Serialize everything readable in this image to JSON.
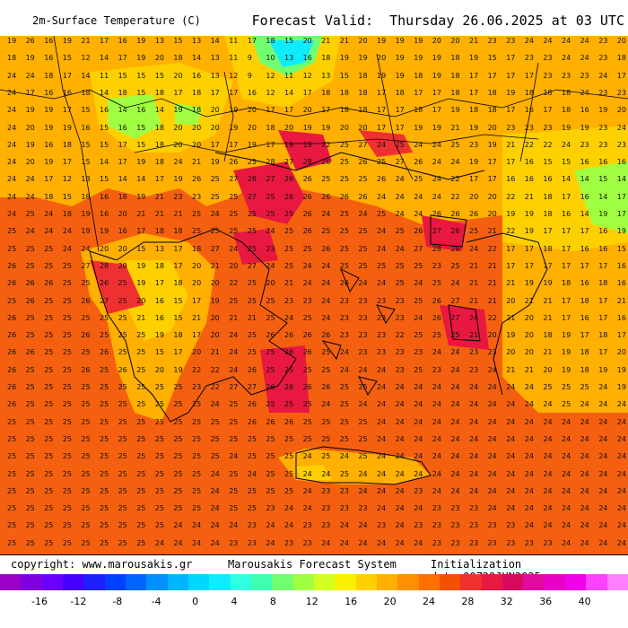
{
  "header": {
    "title": "2m-Surface Temperature (C)",
    "forecast_valid": "Forecast Valid:  Thursday 26.06.2025 at 03 UTC"
  },
  "footer": {
    "copyright": "copyright: www.marousakis.gr",
    "system": "Marousakis Forecast System",
    "init": "Initialization date:00Z22JUN2025"
  },
  "colorbar": {
    "ticks": [
      "-16",
      "-12",
      "-8",
      "-4",
      "0",
      "4",
      "8",
      "12",
      "16",
      "20",
      "24",
      "28",
      "32",
      "36",
      "40"
    ],
    "colors": [
      "#9a00c8",
      "#8000e0",
      "#6a00ff",
      "#4600ff",
      "#2020ff",
      "#0040ff",
      "#0064ff",
      "#0090ff",
      "#00b4ff",
      "#00d8ff",
      "#10ecff",
      "#30ffe0",
      "#40ffb0",
      "#70ff70",
      "#a0ff40",
      "#d0ff20",
      "#f8f000",
      "#ffd000",
      "#ffb000",
      "#ff9000",
      "#ff7000",
      "#f55000",
      "#ef3030",
      "#e81840",
      "#d80a60",
      "#e00aa0",
      "#e800c8",
      "#f000e8",
      "#ff40ff",
      "#ff80ff"
    ]
  },
  "grid_values": [
    [
      19,
      26,
      16,
      19,
      21,
      17,
      16,
      19,
      13,
      15,
      13,
      14,
      11,
      17,
      18,
      15,
      20,
      21,
      21,
      20,
      19,
      19,
      19,
      20,
      20,
      21,
      23,
      23,
      24,
      24,
      24,
      24,
      23,
      20
    ],
    [
      18,
      19,
      16,
      15,
      12,
      14,
      17,
      19,
      20,
      18,
      14,
      13,
      11,
      9,
      10,
      13,
      16,
      18,
      19,
      19,
      20,
      19,
      19,
      19,
      18,
      19,
      15,
      17,
      23,
      23,
      24,
      24,
      23,
      18
    ],
    [
      24,
      24,
      18,
      17,
      14,
      11,
      15,
      15,
      15,
      20,
      16,
      13,
      12,
      9,
      12,
      11,
      12,
      13,
      15,
      18,
      19,
      19,
      18,
      19,
      18,
      17,
      17,
      17,
      17,
      23,
      23,
      23,
      24,
      17
    ],
    [
      24,
      17,
      16,
      16,
      18,
      14,
      18,
      15,
      18,
      17,
      18,
      17,
      17,
      16,
      12,
      14,
      17,
      18,
      18,
      18,
      17,
      18,
      17,
      17,
      18,
      17,
      18,
      19,
      18,
      18,
      18,
      24,
      23,
      23
    ],
    [
      24,
      19,
      19,
      17,
      15,
      16,
      14,
      16,
      14,
      19,
      18,
      20,
      19,
      20,
      17,
      17,
      20,
      17,
      18,
      18,
      17,
      17,
      18,
      17,
      19,
      18,
      18,
      17,
      16,
      17,
      18,
      16,
      19,
      20
    ],
    [
      24,
      20,
      19,
      19,
      16,
      15,
      16,
      15,
      18,
      20,
      20,
      20,
      19,
      20,
      18,
      20,
      19,
      19,
      20,
      20,
      17,
      17,
      19,
      19,
      21,
      19,
      20,
      23,
      23,
      23,
      19,
      19,
      23,
      24
    ],
    [
      24,
      19,
      16,
      18,
      15,
      15,
      17,
      15,
      18,
      20,
      20,
      17,
      17,
      19,
      17,
      19,
      19,
      22,
      25,
      27,
      24,
      25,
      24,
      24,
      25,
      23,
      19,
      21,
      22,
      22,
      24,
      23,
      23,
      23
    ],
    [
      24,
      20,
      19,
      17,
      15,
      14,
      17,
      19,
      18,
      24,
      21,
      19,
      26,
      25,
      28,
      27,
      28,
      26,
      25,
      26,
      25,
      27,
      26,
      24,
      24,
      19,
      17,
      17,
      16,
      15,
      15,
      16,
      16,
      16
    ],
    [
      24,
      24,
      17,
      12,
      13,
      15,
      14,
      14,
      17,
      19,
      26,
      25,
      27,
      28,
      27,
      26,
      26,
      25,
      25,
      25,
      26,
      24,
      25,
      24,
      22,
      17,
      17,
      16,
      16,
      16,
      14,
      14,
      15,
      14
    ],
    [
      24,
      24,
      18,
      15,
      18,
      16,
      18,
      19,
      21,
      23,
      23,
      25,
      25,
      27,
      25,
      26,
      26,
      26,
      26,
      26,
      24,
      24,
      24,
      24,
      22,
      20,
      20,
      22,
      21,
      18,
      17,
      16,
      14,
      17
    ],
    [
      24,
      25,
      24,
      18,
      19,
      16,
      20,
      21,
      21,
      21,
      25,
      24,
      25,
      25,
      25,
      25,
      26,
      24,
      25,
      24,
      25,
      24,
      24,
      26,
      26,
      26,
      20,
      19,
      19,
      18,
      16,
      14,
      19,
      17
    ],
    [
      25,
      24,
      24,
      24,
      19,
      19,
      16,
      17,
      18,
      18,
      25,
      25,
      25,
      25,
      24,
      25,
      26,
      25,
      25,
      25,
      24,
      25,
      26,
      27,
      26,
      25,
      21,
      22,
      19,
      17,
      17,
      17,
      16,
      19
    ],
    [
      25,
      25,
      25,
      24,
      24,
      20,
      20,
      15,
      13,
      17,
      18,
      27,
      24,
      25,
      23,
      25,
      25,
      26,
      25,
      25,
      24,
      24,
      27,
      28,
      26,
      24,
      22,
      17,
      17,
      18,
      17,
      16,
      16,
      15
    ],
    [
      26,
      25,
      25,
      25,
      27,
      28,
      20,
      19,
      18,
      17,
      20,
      21,
      20,
      27,
      24,
      25,
      24,
      24,
      25,
      25,
      25,
      25,
      25,
      23,
      25,
      21,
      21,
      17,
      17,
      17,
      17,
      17,
      17,
      16
    ],
    [
      26,
      26,
      26,
      25,
      25,
      26,
      25,
      19,
      17,
      18,
      20,
      20,
      22,
      25,
      20,
      21,
      24,
      24,
      26,
      24,
      24,
      25,
      24,
      25,
      24,
      21,
      21,
      21,
      19,
      19,
      18,
      16,
      18,
      16
    ],
    [
      25,
      26,
      25,
      25,
      26,
      27,
      25,
      20,
      16,
      15,
      17,
      19,
      25,
      25,
      25,
      23,
      23,
      24,
      23,
      23,
      23,
      23,
      25,
      26,
      27,
      21,
      21,
      20,
      21,
      21,
      17,
      18,
      17,
      21
    ],
    [
      26,
      25,
      25,
      25,
      25,
      25,
      25,
      21,
      16,
      15,
      21,
      20,
      21,
      21,
      25,
      24,
      25,
      24,
      23,
      23,
      23,
      23,
      24,
      26,
      27,
      24,
      22,
      21,
      20,
      21,
      17,
      16,
      17,
      16
    ],
    [
      26,
      25,
      25,
      25,
      26,
      25,
      25,
      25,
      19,
      18,
      17,
      20,
      24,
      25,
      26,
      26,
      26,
      26,
      23,
      23,
      23,
      22,
      25,
      25,
      25,
      21,
      20,
      19,
      20,
      18,
      19,
      17,
      18,
      17
    ],
    [
      26,
      26,
      25,
      25,
      25,
      26,
      25,
      25,
      15,
      17,
      20,
      21,
      24,
      25,
      25,
      26,
      26,
      25,
      24,
      23,
      23,
      23,
      23,
      24,
      24,
      23,
      23,
      20,
      20,
      21,
      19,
      18,
      17,
      20
    ],
    [
      26,
      25,
      25,
      25,
      26,
      25,
      26,
      25,
      20,
      19,
      22,
      22,
      24,
      26,
      25,
      25,
      25,
      25,
      24,
      24,
      24,
      23,
      25,
      23,
      24,
      23,
      24,
      21,
      21,
      20,
      19,
      18,
      19,
      19
    ],
    [
      26,
      25,
      25,
      25,
      25,
      25,
      25,
      25,
      25,
      25,
      23,
      22,
      27,
      27,
      26,
      26,
      26,
      26,
      25,
      25,
      24,
      24,
      24,
      24,
      24,
      24,
      24,
      24,
      24,
      25,
      25,
      25,
      24,
      19
    ],
    [
      26,
      25,
      25,
      25,
      25,
      25,
      25,
      25,
      25,
      25,
      25,
      24,
      25,
      26,
      25,
      25,
      25,
      24,
      25,
      24,
      24,
      24,
      24,
      24,
      24,
      24,
      24,
      24,
      24,
      24,
      25,
      24,
      24,
      24
    ],
    [
      25,
      25,
      25,
      25,
      25,
      25,
      25,
      25,
      25,
      25,
      25,
      25,
      25,
      26,
      26,
      26,
      25,
      25,
      25,
      25,
      24,
      24,
      24,
      24,
      24,
      24,
      24,
      24,
      24,
      24,
      24,
      24,
      24,
      24
    ],
    [
      25,
      25,
      25,
      25,
      25,
      25,
      25,
      25,
      25,
      25,
      25,
      25,
      25,
      25,
      25,
      25,
      25,
      25,
      25,
      25,
      24,
      24,
      24,
      24,
      24,
      24,
      24,
      24,
      24,
      24,
      24,
      24,
      24,
      24
    ],
    [
      25,
      25,
      25,
      25,
      25,
      25,
      25,
      25,
      25,
      25,
      25,
      25,
      24,
      25,
      25,
      25,
      24,
      25,
      24,
      25,
      24,
      24,
      24,
      24,
      24,
      24,
      24,
      24,
      24,
      24,
      24,
      24,
      24,
      24
    ],
    [
      25,
      25,
      25,
      25,
      25,
      25,
      25,
      25,
      25,
      25,
      25,
      24,
      25,
      24,
      25,
      25,
      24,
      24,
      25,
      24,
      24,
      24,
      24,
      24,
      24,
      24,
      24,
      24,
      24,
      24,
      24,
      24,
      24,
      24
    ],
    [
      25,
      25,
      25,
      25,
      25,
      25,
      25,
      25,
      25,
      25,
      25,
      24,
      25,
      25,
      25,
      25,
      24,
      23,
      23,
      24,
      24,
      24,
      23,
      24,
      24,
      24,
      24,
      24,
      24,
      24,
      24,
      24,
      24,
      24
    ],
    [
      25,
      25,
      25,
      25,
      25,
      25,
      25,
      25,
      25,
      25,
      25,
      24,
      25,
      25,
      23,
      24,
      24,
      23,
      23,
      23,
      24,
      24,
      24,
      23,
      23,
      23,
      24,
      24,
      24,
      24,
      24,
      24,
      24,
      24
    ],
    [
      25,
      25,
      25,
      25,
      25,
      25,
      25,
      25,
      25,
      24,
      24,
      24,
      24,
      23,
      24,
      24,
      23,
      23,
      24,
      24,
      23,
      24,
      23,
      23,
      23,
      23,
      23,
      23,
      24,
      24,
      24,
      24,
      24,
      24
    ],
    [
      25,
      25,
      25,
      25,
      25,
      25,
      25,
      25,
      24,
      24,
      24,
      24,
      23,
      23,
      24,
      23,
      23,
      24,
      24,
      24,
      24,
      24,
      24,
      23,
      23,
      23,
      23,
      23,
      23,
      23,
      24,
      24,
      24,
      24
    ]
  ]
}
